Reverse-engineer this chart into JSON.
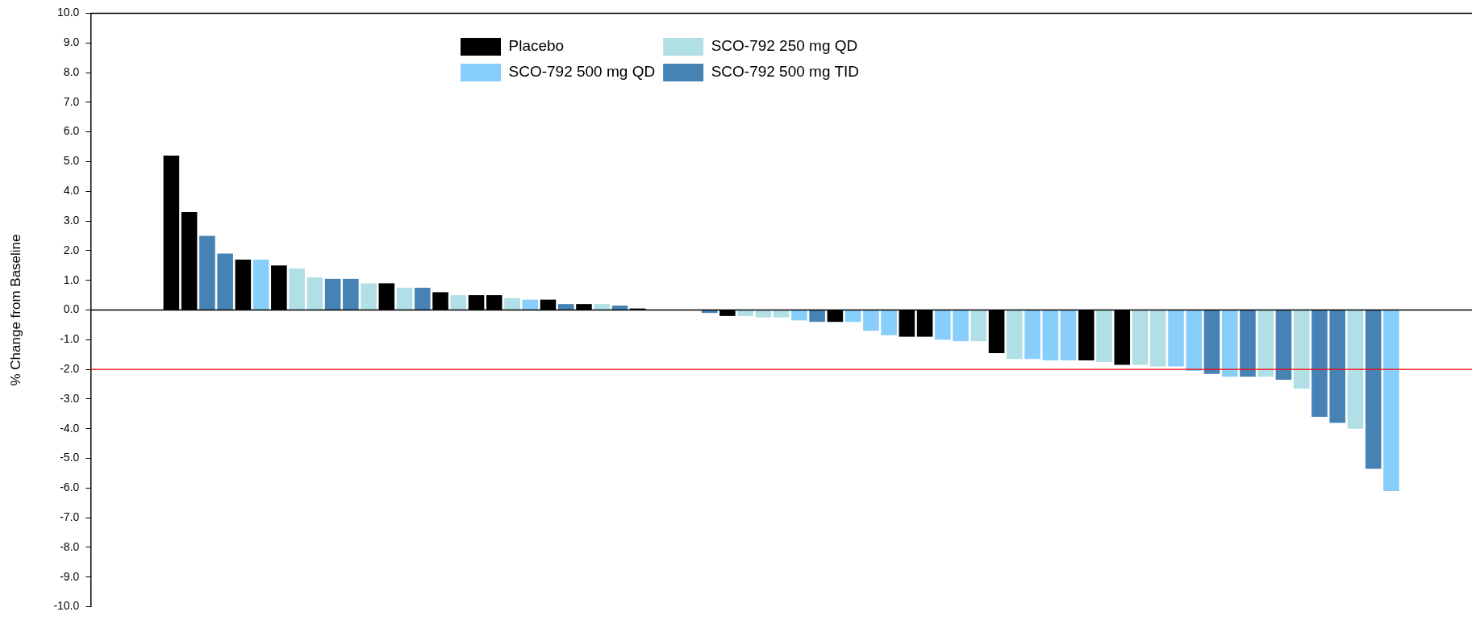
{
  "chart_data": {
    "type": "bar",
    "ylabel": "% Change from Baseline",
    "categories": [
      null,
      null,
      null,
      null,
      null,
      null,
      null,
      null,
      null,
      null,
      null,
      null,
      null,
      null,
      null,
      null,
      null,
      null,
      null,
      null,
      null,
      null,
      null,
      null,
      null,
      null,
      null,
      null,
      null,
      null,
      null,
      null,
      null,
      null,
      null,
      null,
      null,
      null,
      null,
      null,
      null,
      null,
      null,
      null,
      null,
      null,
      null,
      null,
      null,
      null,
      null,
      null,
      null,
      null,
      null,
      null,
      null,
      null,
      null,
      null,
      null,
      null,
      null,
      null,
      null,
      null,
      null,
      null,
      null,
      null,
      null,
      null,
      null,
      null,
      null,
      null,
      null
    ],
    "series": [
      {
        "name": "Placebo",
        "color": "#000000",
        "values": [
          null,
          null,
          null,
          null,
          5.2,
          3.3,
          null,
          null,
          1.7,
          null,
          1.5,
          null,
          null,
          null,
          null,
          null,
          0.9,
          null,
          null,
          0.6,
          null,
          0.5,
          0.5,
          null,
          null,
          0.35,
          null,
          0.2,
          null,
          null,
          0.05,
          null,
          null,
          null,
          null,
          -0.2,
          null,
          null,
          null,
          null,
          null,
          -0.4,
          null,
          null,
          null,
          -0.9,
          -0.9,
          null,
          null,
          null,
          -1.45,
          null,
          null,
          null,
          null,
          -1.7,
          null,
          -1.85,
          null,
          null,
          null,
          null,
          null,
          null,
          null,
          null,
          null,
          null,
          null,
          null,
          null,
          null,
          null,
          null,
          null,
          null,
          null
        ]
      },
      {
        "name": "SCO-792 500 mg QD",
        "color": "#87cefa",
        "values": [
          null,
          null,
          null,
          null,
          null,
          null,
          null,
          null,
          null,
          1.7,
          null,
          null,
          null,
          null,
          null,
          null,
          null,
          null,
          null,
          null,
          null,
          null,
          null,
          null,
          0.35,
          null,
          null,
          null,
          null,
          null,
          null,
          null,
          null,
          null,
          null,
          null,
          null,
          null,
          null,
          -0.35,
          null,
          null,
          -0.4,
          -0.7,
          -0.85,
          null,
          null,
          -1.0,
          -1.05,
          null,
          null,
          null,
          -1.65,
          -1.7,
          -1.7,
          null,
          null,
          null,
          null,
          null,
          -1.9,
          -2.05,
          null,
          -2.25,
          null,
          null,
          null,
          null,
          null,
          null,
          null,
          null,
          -6.1,
          null,
          null,
          null,
          null
        ]
      },
      {
        "name": "SCO-792 250 mg QD",
        "color": "#b0dfe5",
        "values": [
          null,
          null,
          null,
          null,
          null,
          null,
          null,
          null,
          null,
          null,
          null,
          1.4,
          1.1,
          null,
          null,
          0.9,
          null,
          0.75,
          null,
          null,
          0.5,
          null,
          null,
          0.4,
          null,
          null,
          null,
          null,
          0.2,
          null,
          null,
          null,
          null,
          null,
          null,
          null,
          -0.2,
          -0.25,
          -0.25,
          null,
          null,
          null,
          null,
          null,
          null,
          null,
          null,
          null,
          null,
          -1.05,
          null,
          -1.65,
          null,
          null,
          null,
          null,
          -1.75,
          null,
          -1.85,
          -1.9,
          null,
          null,
          null,
          null,
          null,
          -2.25,
          null,
          -2.65,
          null,
          null,
          -4.0,
          null,
          null,
          null,
          null,
          null,
          null
        ]
      },
      {
        "name": "SCO-792 500 mg TID",
        "color": "#4682b4",
        "values": [
          null,
          null,
          null,
          null,
          null,
          null,
          2.5,
          1.9,
          null,
          null,
          null,
          null,
          null,
          1.05,
          1.05,
          null,
          null,
          null,
          0.75,
          null,
          null,
          null,
          null,
          null,
          null,
          null,
          0.2,
          null,
          null,
          0.15,
          null,
          null,
          null,
          null,
          -0.1,
          null,
          null,
          null,
          null,
          null,
          -0.4,
          null,
          null,
          null,
          null,
          null,
          null,
          null,
          null,
          null,
          null,
          null,
          null,
          null,
          null,
          null,
          null,
          null,
          null,
          null,
          null,
          null,
          -2.15,
          null,
          -2.25,
          null,
          -2.35,
          null,
          -3.6,
          -3.8,
          null,
          -5.35,
          null,
          null,
          null,
          null,
          null
        ]
      }
    ],
    "ylim": [
      -10,
      10
    ],
    "yticks": [
      {
        "value": 10,
        "label": "10.0"
      },
      {
        "value": 9,
        "label": "9.0"
      },
      {
        "value": 8,
        "label": "8.0"
      },
      {
        "value": 7,
        "label": "7.0"
      },
      {
        "value": 6,
        "label": "6.0"
      },
      {
        "value": 5,
        "label": "5.0"
      },
      {
        "value": 4,
        "label": "4.0"
      },
      {
        "value": 3,
        "label": "3.0"
      },
      {
        "value": 2,
        "label": "2.0"
      },
      {
        "value": 1,
        "label": "1.0"
      },
      {
        "value": 0,
        "label": "0.0"
      },
      {
        "value": -1,
        "label": "-1.0"
      },
      {
        "value": -2,
        "label": "-2.0"
      },
      {
        "value": -3,
        "label": "-3.0"
      },
      {
        "value": -4,
        "label": "-4.0"
      },
      {
        "value": -5,
        "label": "-5.0"
      },
      {
        "value": -6,
        "label": "-6.0"
      },
      {
        "value": -7,
        "label": "-7.0"
      },
      {
        "value": -8,
        "label": "-8.0"
      },
      {
        "value": -9,
        "label": "-9.0"
      },
      {
        "value": -10,
        "label": "-10.0"
      }
    ],
    "ref_lines": [
      {
        "axis": "y",
        "value": -2,
        "color": "#ff0000"
      }
    ],
    "legend": "top",
    "tick_labels": "y",
    "grid": false
  }
}
